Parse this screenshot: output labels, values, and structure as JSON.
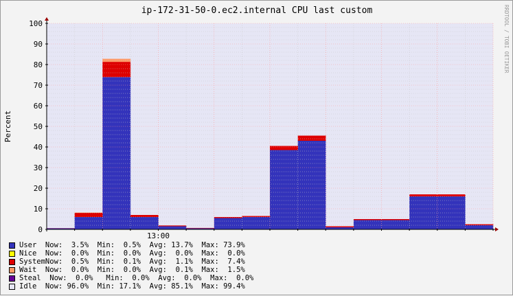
{
  "chart_data": {
    "type": "area",
    "title": "ip-172-31-50-0.ec2.internal CPU last custom",
    "ylabel": "Percent",
    "xlabel": "",
    "watermark": "RRDTOOL / TOBI OETIKER",
    "ylim": [
      0,
      100
    ],
    "yticks": [
      0,
      10,
      20,
      30,
      40,
      50,
      60,
      70,
      80,
      90,
      100
    ],
    "xtick_labels": [
      {
        "label": "13:00",
        "slot": 4
      }
    ],
    "grid": true,
    "stacked": true,
    "num_slots": 16,
    "series": [
      {
        "name": "User",
        "color": "#3333bb",
        "values": [
          0.5,
          6.0,
          73.9,
          6.0,
          1.5,
          0.5,
          5.5,
          6.0,
          38.5,
          43.0,
          1.0,
          4.5,
          4.5,
          16.0,
          16.0,
          2.0
        ]
      },
      {
        "name": "Nice",
        "color": "#ffff00",
        "values": [
          0,
          0,
          0,
          0,
          0,
          0,
          0,
          0,
          0,
          0,
          0,
          0,
          0,
          0,
          0,
          0
        ]
      },
      {
        "name": "System",
        "color": "#dd0000",
        "values": [
          0.1,
          2.0,
          7.4,
          1.0,
          0.4,
          0.2,
          0.5,
          0.5,
          2.0,
          2.5,
          0.5,
          0.5,
          0.5,
          1.0,
          1.0,
          0.5
        ]
      },
      {
        "name": "Wait",
        "color": "#ff9966",
        "values": [
          0,
          0.2,
          1.5,
          0,
          0,
          0,
          0,
          0,
          0,
          0,
          0,
          0,
          0,
          0,
          0,
          0
        ]
      },
      {
        "name": "Steal",
        "color": "#660099",
        "values": [
          0,
          0,
          0,
          0,
          0,
          0,
          0,
          0,
          0,
          0,
          0,
          0,
          0,
          0,
          0,
          0
        ]
      },
      {
        "name": "Idle",
        "color": "#e6e6f5",
        "values": [
          99.4,
          91.8,
          17.2,
          93.0,
          98.1,
          99.3,
          94.0,
          93.5,
          59.5,
          54.5,
          98.5,
          95.0,
          95.0,
          83.0,
          83.0,
          97.5
        ]
      }
    ],
    "legend": [
      {
        "name": "User",
        "text": "User  Now:  3.5%  Min:  0.5%  Avg: 13.7%  Max: 73.9%"
      },
      {
        "name": "Nice",
        "text": "Nice  Now:  0.0%  Min:  0.0%  Avg:  0.0%  Max:  0.0%"
      },
      {
        "name": "System",
        "text": "SystemNow:  0.5%  Min:  0.1%  Avg:  1.1%  Max:  7.4%"
      },
      {
        "name": "Wait",
        "text": "Wait  Now:  0.0%  Min:  0.0%  Avg:  0.1%  Max:  1.5%"
      },
      {
        "name": "Steal",
        "text": "Steal  Now:  0.0%   Min:  0.0%  Avg:  0.0%  Max:  0.0%"
      },
      {
        "name": "Idle",
        "text": "Idle  Now: 96.0%  Min: 17.1%  Avg: 85.1%  Max: 99.4%"
      }
    ],
    "colors": {
      "plot_bg": "#e6e6f5",
      "major_grid": "#ff9999",
      "minor_grid": "#c8c8c8",
      "axis": "#000000",
      "arrow": "#990000"
    }
  }
}
